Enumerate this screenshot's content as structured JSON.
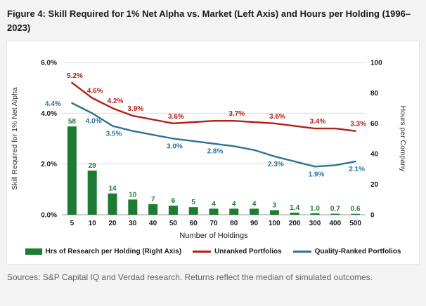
{
  "figure": {
    "source_note": "Sources: S&P Capital IQ and Verdad research. Returns reflect the median of simulated outcomes."
  },
  "colors": {
    "bar_green": "#1e7b34",
    "line_red": "#b42018",
    "line_blue": "#2f7396",
    "grid": "#dcdcdc",
    "axis_line": "#9c9c9c"
  },
  "chart_data": {
    "type": "combo-bar-line",
    "title": "Figure 4: Skill Required for 1% Net Alpha vs. Market (Left Axis) and Hours per Holding (1996–2023)",
    "categories": [
      "5",
      "10",
      "20",
      "30",
      "40",
      "50",
      "60",
      "70",
      "80",
      "90",
      "100",
      "200",
      "300",
      "400",
      "500"
    ],
    "xlabel": "Number of Holdings",
    "legend_position": "bottom",
    "grid": true,
    "left_axis": {
      "label": "Skill Required for 1% Net Alpha",
      "min": 0,
      "max": 6,
      "tick_values": [
        0,
        2,
        4,
        6
      ],
      "tick_labels": [
        "0.0%",
        "2.0%",
        "4.0%",
        "6.0%"
      ]
    },
    "right_axis": {
      "label": "Hours per Company",
      "min": 0,
      "max": 100,
      "tick_values": [
        0,
        20,
        40,
        60,
        80,
        100
      ],
      "tick_labels": [
        "0",
        "20",
        "40",
        "60",
        "80",
        "100"
      ]
    },
    "series": [
      {
        "name": "Hrs of Research per Holding (Right Axis)",
        "type": "bar",
        "axis": "right",
        "color": "#1e7b34",
        "values": [
          58,
          29,
          14,
          10,
          7,
          6,
          5,
          4,
          4,
          4,
          3,
          1.4,
          1,
          0.7,
          0.6
        ],
        "labels": [
          "58",
          "29",
          "14",
          "10",
          "7",
          "6",
          "5",
          "4",
          "4",
          "4",
          "3",
          "1.4",
          "1.0",
          "0.7",
          "0.6"
        ]
      },
      {
        "name": "Unranked Portfolios",
        "type": "line",
        "axis": "left",
        "color": "#b42018",
        "values": [
          5.2,
          4.6,
          4.2,
          3.9,
          3.75,
          3.6,
          3.65,
          3.7,
          3.7,
          3.65,
          3.6,
          3.5,
          3.4,
          3.4,
          3.3
        ],
        "point_labels": [
          {
            "i": 0,
            "text": "5.2%",
            "pos": "above"
          },
          {
            "i": 1,
            "text": "4.6%",
            "pos": "above"
          },
          {
            "i": 2,
            "text": "4.2%",
            "pos": "above"
          },
          {
            "i": 3,
            "text": "3.9%",
            "pos": "above"
          },
          {
            "i": 5,
            "text": "3.6%",
            "pos": "above"
          },
          {
            "i": 8,
            "text": "3.7%",
            "pos": "above"
          },
          {
            "i": 10,
            "text": "3.6%",
            "pos": "above"
          },
          {
            "i": 12,
            "text": "3.4%",
            "pos": "above"
          },
          {
            "i": 14,
            "text": "3.3%",
            "pos": "above"
          }
        ]
      },
      {
        "name": "Quality-Ranked Portfolios",
        "type": "line",
        "axis": "left",
        "color": "#2f7396",
        "values": [
          4.4,
          4.0,
          3.5,
          3.3,
          3.15,
          3.0,
          2.9,
          2.8,
          2.7,
          2.55,
          2.3,
          2.1,
          1.9,
          1.95,
          2.1
        ],
        "point_labels": [
          {
            "i": 0,
            "text": "4.4%",
            "pos": "left"
          },
          {
            "i": 1,
            "text": "4.0%",
            "pos": "below"
          },
          {
            "i": 2,
            "text": "3.5%",
            "pos": "below"
          },
          {
            "i": 5,
            "text": "3.0%",
            "pos": "below"
          },
          {
            "i": 7,
            "text": "2.8%",
            "pos": "below"
          },
          {
            "i": 10,
            "text": "2.3%",
            "pos": "below"
          },
          {
            "i": 12,
            "text": "1.9%",
            "pos": "below"
          },
          {
            "i": 14,
            "text": "2.1%",
            "pos": "below"
          }
        ]
      }
    ]
  }
}
